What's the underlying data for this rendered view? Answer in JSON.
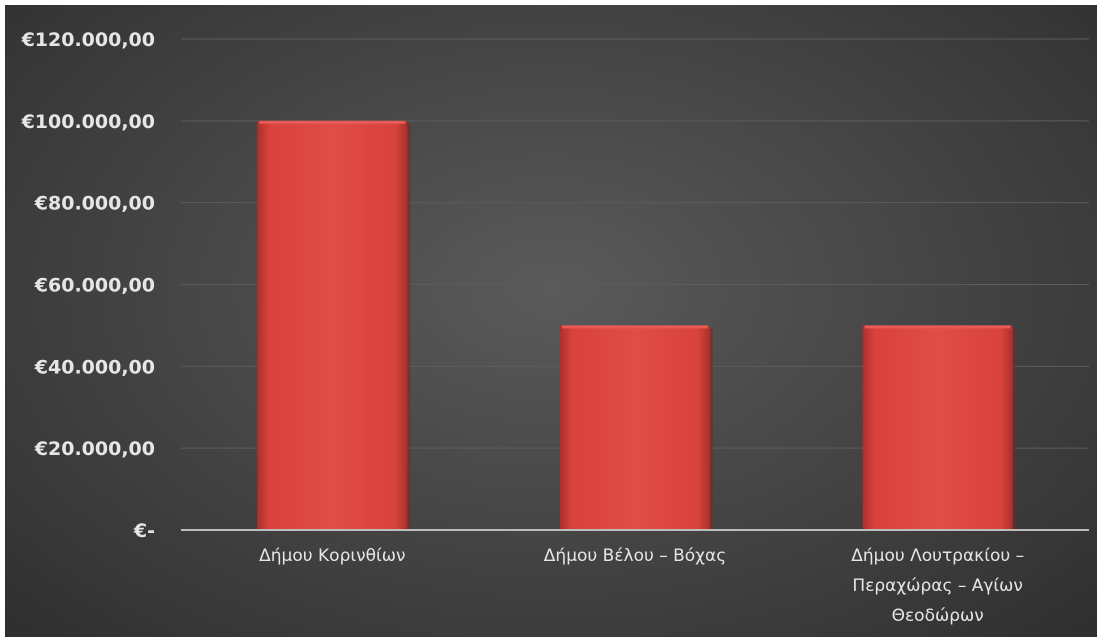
{
  "chart_data": {
    "type": "bar",
    "categories": [
      [
        "Δήμου Κορινθίων"
      ],
      [
        "Δήμου Βέλου – Βόχας"
      ],
      [
        "Δήμου Λουτρακίου –",
        "Περαχώρας – Αγίων",
        "Θεοδώρων"
      ]
    ],
    "values": [
      100000,
      50000,
      50000
    ],
    "ylim": [
      0,
      120000
    ],
    "ytick_values": [
      0,
      20000,
      40000,
      60000,
      80000,
      100000,
      120000
    ],
    "ytick_labels": [
      "€-",
      "€20.000,00",
      "€40.000,00",
      "€60.000,00",
      "€80.000,00",
      "€100.000,00",
      "€120.000,00"
    ],
    "grid": true,
    "legend": "none"
  },
  "colors": {
    "bar": "#d9423d",
    "bar_highlight": "#e85a55",
    "bar_shadow": "#8f1f1c"
  }
}
